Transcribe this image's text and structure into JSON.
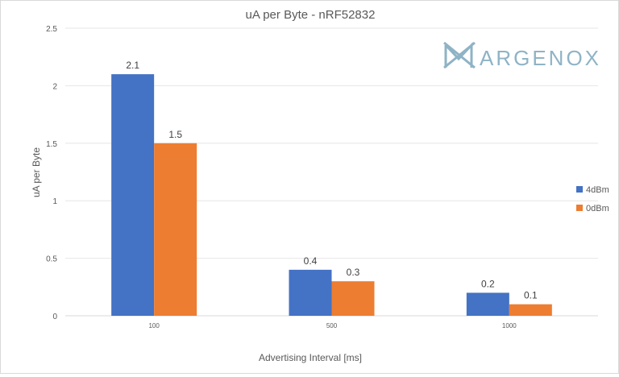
{
  "chart_data": {
    "type": "bar",
    "title": "uA per Byte - nRF52832",
    "xlabel": "Advertising Interval [ms]",
    "ylabel": "uA per Byte",
    "categories": [
      "100",
      "500",
      "1000"
    ],
    "series": [
      {
        "name": "4dBm",
        "values": [
          2.1,
          0.4,
          0.2
        ],
        "color": "#4472c4"
      },
      {
        "name": "0dBm",
        "values": [
          1.5,
          0.3,
          0.1
        ],
        "color": "#ed7d31"
      }
    ],
    "ylim": [
      0,
      2.5
    ],
    "yticks": [
      "0",
      "0.5",
      "1",
      "1.5",
      "2",
      "2.5"
    ],
    "grid": true,
    "legend_position": "right"
  },
  "logo": {
    "text": "ARGENOX",
    "color": "#8fb3c6",
    "icon": "argenox-mx-logo-icon"
  }
}
